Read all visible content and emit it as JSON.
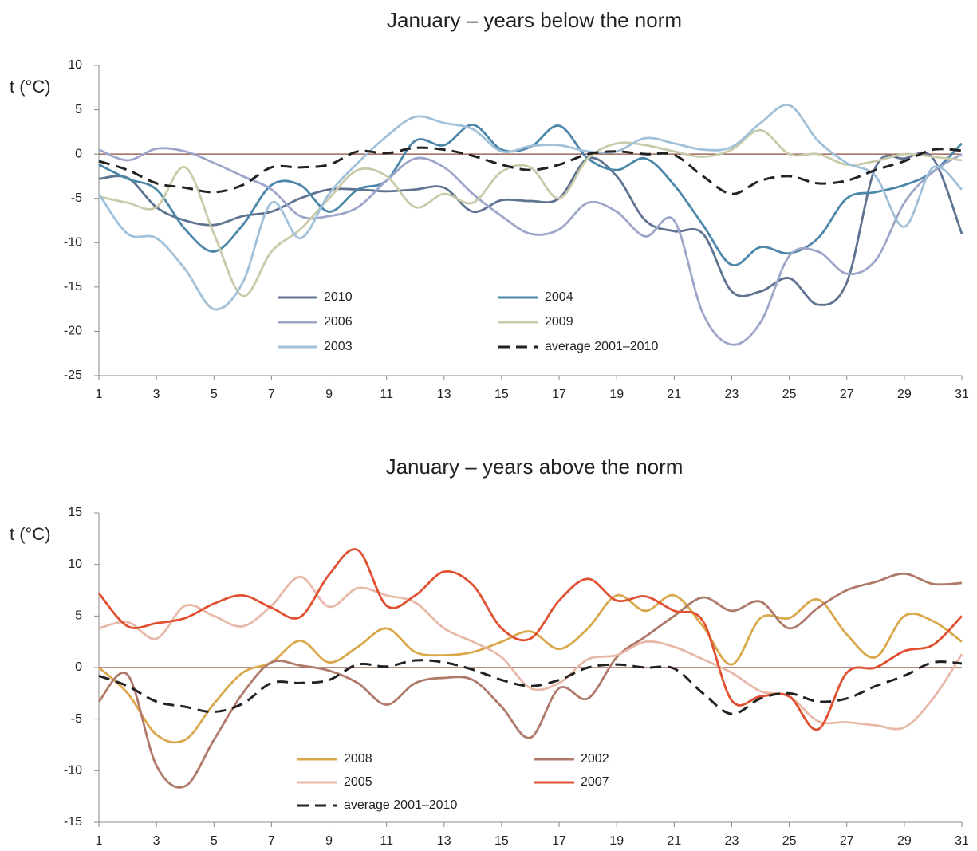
{
  "chart_data": [
    {
      "type": "line",
      "title": "January – years below the norm",
      "ylabel": "t (°C)",
      "x": [
        1,
        2,
        3,
        4,
        5,
        6,
        7,
        8,
        9,
        10,
        11,
        12,
        13,
        14,
        15,
        16,
        17,
        18,
        19,
        20,
        21,
        22,
        23,
        24,
        25,
        26,
        27,
        28,
        29,
        30,
        31
      ],
      "xlim": [
        1,
        31
      ],
      "xticks": [
        1,
        3,
        5,
        7,
        9,
        11,
        13,
        15,
        17,
        19,
        21,
        23,
        25,
        27,
        29,
        31
      ],
      "ylim": [
        -25,
        10
      ],
      "yticks": [
        -25,
        -20,
        -15,
        -10,
        -5,
        0,
        5,
        10
      ],
      "zero_line_color": "#8b4a3a",
      "series": [
        {
          "name": "2010",
          "color": "#5f7391",
          "values": [
            -2.8,
            -2.7,
            -6,
            -7.5,
            -8,
            -7,
            -6.5,
            -5,
            -4,
            -4,
            -4.2,
            -4,
            -3.8,
            -6.5,
            -5.2,
            -5.3,
            -5,
            -0.5,
            -2.5,
            -7.5,
            -8.7,
            -9,
            -15.5,
            -15.5,
            -14,
            -17,
            -14.5,
            -1.5,
            -0.5,
            -0.5,
            -9
          ]
        },
        {
          "name": "2004",
          "color": "#4c87a9",
          "values": [
            -1.2,
            -2.8,
            -4,
            -8.5,
            -11,
            -8,
            -3.5,
            -3.5,
            -6.5,
            -4,
            -3,
            1.5,
            1,
            3.3,
            0.5,
            0.8,
            3.2,
            -0.5,
            -1.8,
            -0.5,
            -3.5,
            -8,
            -12.5,
            -10.5,
            -11.2,
            -9.5,
            -5,
            -4.3,
            -3.5,
            -2,
            1.2
          ]
        },
        {
          "name": "2006",
          "color": "#9ea7c9",
          "values": [
            0.5,
            -0.7,
            0.6,
            0.3,
            -1,
            -2.5,
            -4,
            -7,
            -7,
            -6,
            -3,
            -0.5,
            -1.5,
            -4.5,
            -7,
            -9,
            -8.5,
            -5.5,
            -6.5,
            -9.3,
            -7.5,
            -18,
            -21.5,
            -19,
            -11.5,
            -11,
            -13.5,
            -12,
            -5.5,
            -2,
            0
          ]
        },
        {
          "name": "2009",
          "color": "#c9caa9",
          "values": [
            -4.8,
            -5.5,
            -6,
            -1.5,
            -9,
            -16,
            -11,
            -8.5,
            -5,
            -1.8,
            -2.5,
            -6,
            -4.5,
            -5.5,
            -2,
            -1.5,
            -5,
            -0.5,
            1.2,
            1,
            0.3,
            -0.3,
            0.5,
            2.7,
            0,
            0,
            -1.2,
            -0.8,
            0,
            -0.3,
            -0.7
          ]
        },
        {
          "name": "2003",
          "color": "#a0c1d9",
          "values": [
            -4.5,
            -9,
            -9.5,
            -13,
            -17.5,
            -14.5,
            -5.5,
            -9.5,
            -4.5,
            -1,
            2,
            4.2,
            3.5,
            2.8,
            0.3,
            0.9,
            1,
            0.3,
            0.3,
            1.8,
            1.2,
            0.5,
            0.8,
            3.5,
            5.5,
            1.5,
            -1,
            -2.5,
            -8.2,
            -1.5,
            -4
          ]
        },
        {
          "name": "average 2001–2010",
          "color": "#222222",
          "dashed": true,
          "values": [
            -0.8,
            -1.8,
            -3.3,
            -3.8,
            -4.3,
            -3.5,
            -1.5,
            -1.5,
            -1.2,
            0.3,
            0.1,
            0.7,
            0.5,
            -0.2,
            -1.2,
            -1.8,
            -1.2,
            0,
            0.3,
            0,
            -0.1,
            -2.5,
            -4.5,
            -3,
            -2.5,
            -3.3,
            -3,
            -1.8,
            -0.8,
            0.5,
            0.4
          ]
        }
      ]
    },
    {
      "type": "line",
      "title": "January – years above the norm",
      "ylabel": "t (°C)",
      "x": [
        1,
        2,
        3,
        4,
        5,
        6,
        7,
        8,
        9,
        10,
        11,
        12,
        13,
        14,
        15,
        16,
        17,
        18,
        19,
        20,
        21,
        22,
        23,
        24,
        25,
        26,
        27,
        28,
        29,
        30,
        31
      ],
      "xlim": [
        1,
        31
      ],
      "xticks": [
        1,
        3,
        5,
        7,
        9,
        11,
        13,
        15,
        17,
        19,
        21,
        23,
        25,
        27,
        29,
        31
      ],
      "ylim": [
        -15,
        15
      ],
      "yticks": [
        -15,
        -10,
        -5,
        0,
        5,
        10,
        15
      ],
      "zero_line_color": "#8b4a3a",
      "series": [
        {
          "name": "2008",
          "color": "#d9a84a",
          "values": [
            0,
            -2.5,
            -6.5,
            -7,
            -3.5,
            -0.5,
            0.5,
            2.6,
            0.5,
            2,
            3.8,
            1.5,
            1.2,
            1.5,
            2.5,
            3.5,
            1.8,
            3.8,
            7,
            5.5,
            7,
            4,
            0.3,
            4.8,
            4.8,
            6.6,
            3.2,
            1,
            5,
            4.5,
            2.5
          ]
        },
        {
          "name": "2002",
          "color": "#b07a6a",
          "values": [
            -3.3,
            -0.7,
            -9.5,
            -11.5,
            -7,
            -2.5,
            0.5,
            0.2,
            -0.3,
            -1.5,
            -3.6,
            -1.5,
            -1,
            -1.2,
            -3.8,
            -6.8,
            -2,
            -3,
            1,
            3,
            5,
            6.8,
            5.5,
            6.4,
            3.8,
            5.8,
            7.5,
            8.3,
            9.1,
            8.1,
            8.2
          ]
        },
        {
          "name": "2005",
          "color": "#e8b8a8",
          "values": [
            3.8,
            4.4,
            2.8,
            6,
            5,
            4,
            6,
            8.8,
            5.9,
            7.7,
            7,
            6.3,
            3.8,
            2.5,
            1,
            -2,
            -1.5,
            0.8,
            1.2,
            2.5,
            2,
            0.8,
            -0.5,
            -2.3,
            -2.8,
            -5.2,
            -5.3,
            -5.6,
            -5.8,
            -3,
            1.3
          ]
        },
        {
          "name": "2007",
          "color": "#e05030",
          "values": [
            7.2,
            4,
            4.3,
            4.8,
            6.2,
            7,
            5.8,
            4.9,
            9,
            11.4,
            6,
            7,
            9.3,
            8,
            3.8,
            2.8,
            6.5,
            8.6,
            6.5,
            6.9,
            5.5,
            4.5,
            -3.2,
            -2.8,
            -2.8,
            -6,
            -0.5,
            0,
            1.6,
            2.2,
            5
          ]
        },
        {
          "name": "average 2001–2010",
          "color": "#222222",
          "dashed": true,
          "values": [
            -0.8,
            -1.8,
            -3.3,
            -3.8,
            -4.3,
            -3.5,
            -1.5,
            -1.5,
            -1.2,
            0.3,
            0.1,
            0.7,
            0.5,
            -0.2,
            -1.2,
            -1.8,
            -1.2,
            0,
            0.3,
            0,
            -0.1,
            -2.5,
            -4.5,
            -3,
            -2.5,
            -3.3,
            -3,
            -1.8,
            -0.8,
            0.5,
            0.4
          ]
        }
      ]
    }
  ]
}
